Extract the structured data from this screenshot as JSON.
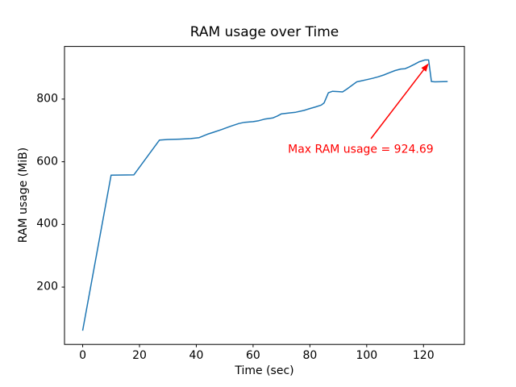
{
  "chart_data": {
    "type": "line",
    "title": "RAM usage over Time",
    "xlabel": "Time (sec)",
    "ylabel": "RAM usage (MiB)",
    "xlim": [
      -6.4,
      134.4
    ],
    "ylim": [
      17,
      968
    ],
    "xticks": [
      0,
      20,
      40,
      60,
      80,
      100,
      120
    ],
    "yticks": [
      200,
      400,
      600,
      800
    ],
    "grid": false,
    "legend": "none",
    "line_color": "#1f77b4",
    "max_value": 924.69,
    "series": [
      {
        "name": "RAM usage",
        "x": [
          0,
          10,
          18,
          27,
          30,
          34,
          38,
          41,
          44,
          46,
          49,
          52,
          55,
          57,
          60,
          62,
          64,
          67,
          68.5,
          70,
          73,
          75,
          78,
          80,
          82,
          84,
          85,
          86.5,
          88,
          90,
          91.5,
          93,
          95,
          96.5,
          98,
          100,
          102,
          104,
          106,
          108,
          110,
          112,
          113.5,
          115,
          117,
          118.5,
          119.5,
          120.5,
          121.8,
          122.8,
          124,
          128.5
        ],
        "y": [
          61,
          557,
          558,
          669,
          671,
          672,
          674,
          677,
          688,
          694,
          703,
          713,
          722,
          726,
          728,
          731,
          736,
          740,
          746,
          753,
          756,
          758,
          764,
          770,
          775,
          781,
          788,
          820,
          825,
          824,
          823,
          832,
          845,
          855,
          858,
          862,
          866,
          871,
          877,
          884,
          891,
          896,
          897,
          903,
          912,
          919,
          922,
          924.69,
          924.69,
          856,
          855,
          856
        ]
      }
    ],
    "annotation": {
      "text": "Max RAM usage = 924.69",
      "color": "#ff0000",
      "text_center_xy": [
        97.9,
        637
      ],
      "arrow_tail_xy": [
        101.5,
        674
      ],
      "arrow_tip_xy": [
        121.8,
        914
      ]
    }
  }
}
